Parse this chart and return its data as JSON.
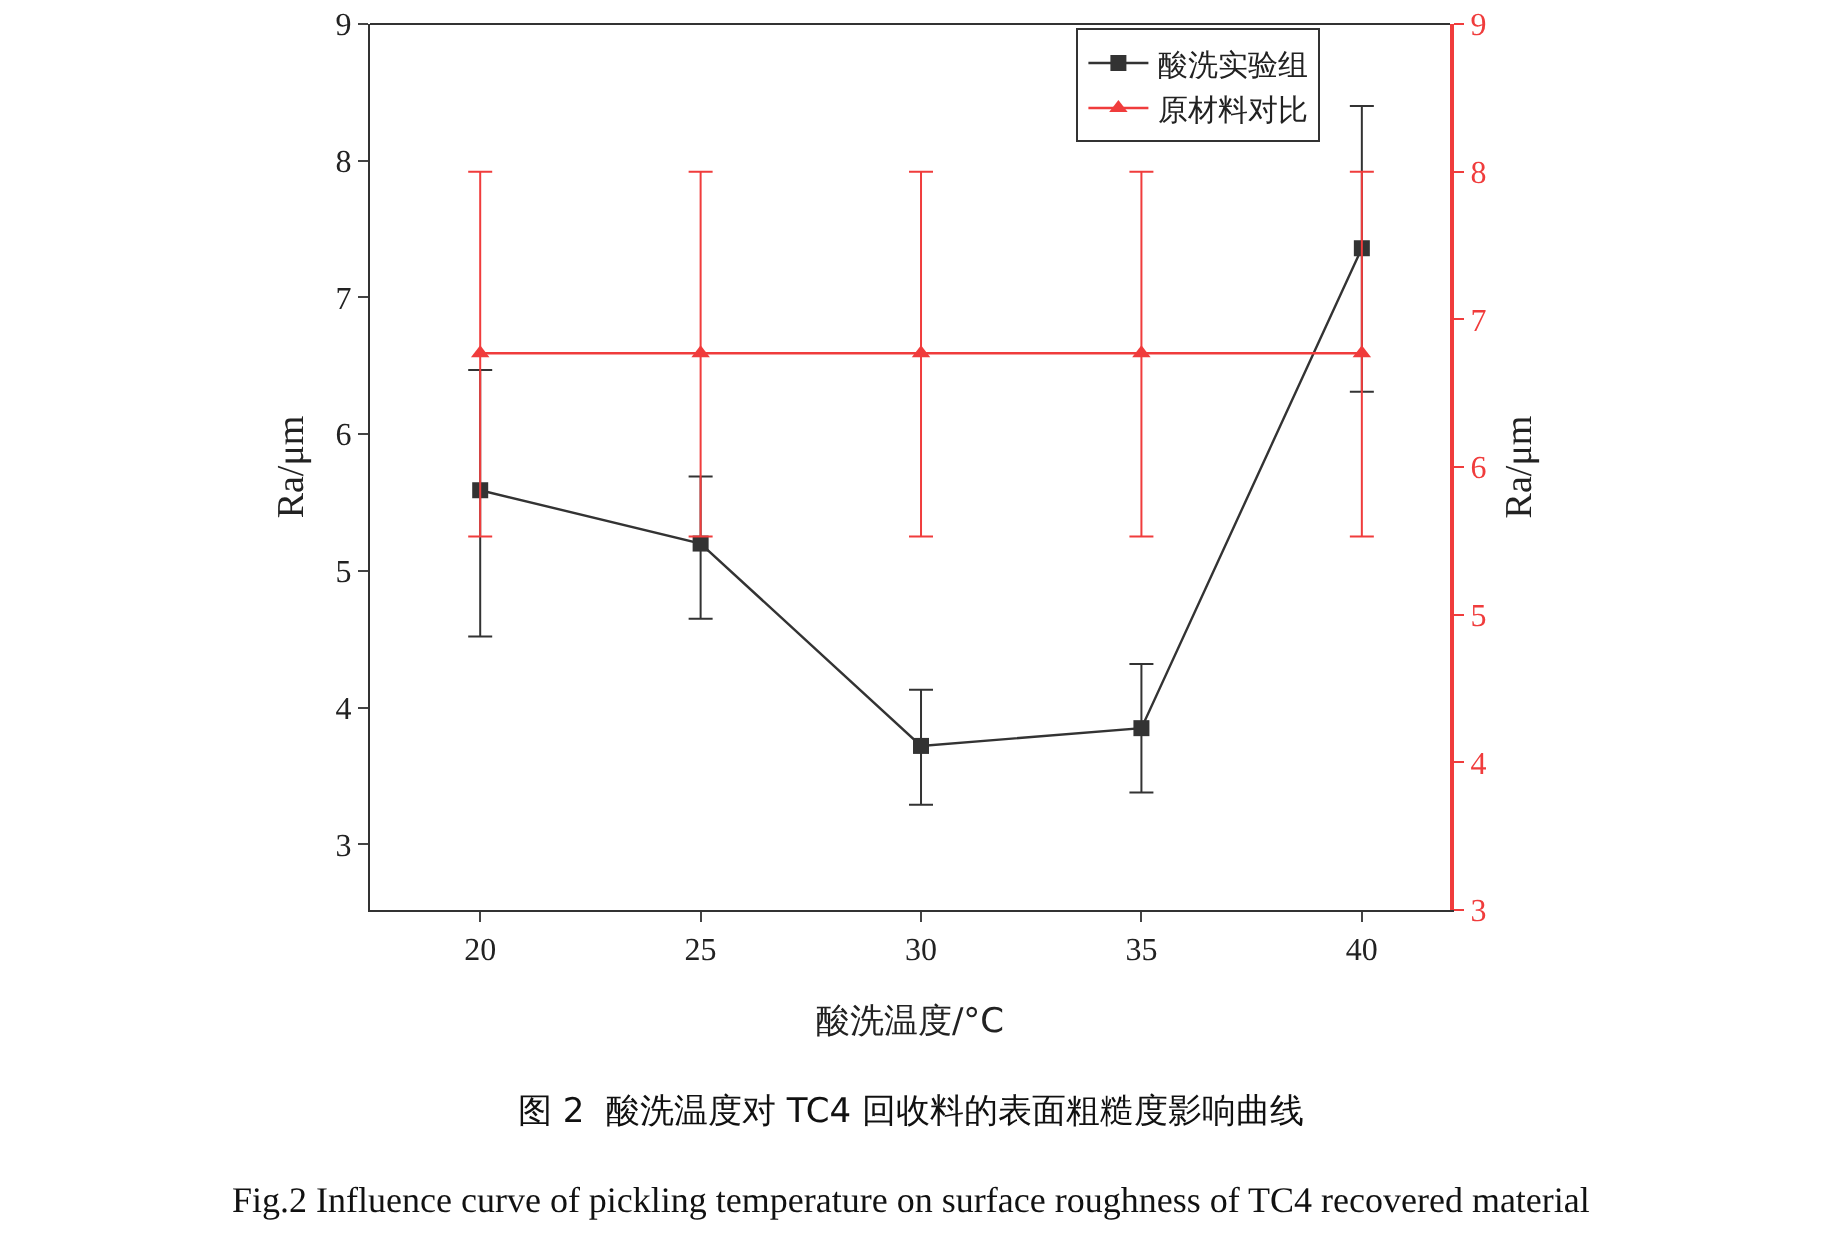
{
  "chart_data": {
    "type": "line",
    "xlabel": "酸洗温度/°C",
    "ylabel": "Ra/μm",
    "y2label": "Ra/μm",
    "x": [
      20,
      25,
      30,
      35,
      40
    ],
    "series": [
      {
        "name": "酸洗实验组",
        "color": "#333333",
        "marker": "square",
        "values": [
          5.59,
          5.2,
          3.72,
          3.85,
          7.36
        ],
        "errors": [
          [
            4.52,
            6.47
          ],
          [
            4.65,
            5.69
          ],
          [
            3.29,
            4.13
          ],
          [
            3.38,
            4.32
          ],
          [
            6.31,
            8.4
          ]
        ]
      },
      {
        "name": "原材料对比",
        "color": "#f03c3c",
        "marker": "triangle",
        "axis": "y2",
        "values": [
          6.77,
          6.77,
          6.77,
          6.77,
          6.77
        ],
        "errors": [
          [
            5.53,
            8.0
          ],
          [
            5.53,
            8.0
          ],
          [
            5.53,
            8.0
          ],
          [
            5.53,
            8.0
          ],
          [
            5.53,
            8.0
          ]
        ]
      }
    ],
    "xlim": [
      17.5,
      42
    ],
    "xticks": [
      20,
      25,
      30,
      35,
      40
    ],
    "ylim": [
      2.52,
      9
    ],
    "yticks": [
      3,
      4,
      5,
      6,
      7,
      8,
      9
    ],
    "y2lim": [
      3,
      9
    ],
    "y2ticks": [
      3,
      4,
      5,
      6,
      7,
      8,
      9
    ],
    "grid": false,
    "legend": "top right",
    "line_style": "solid",
    "annotations": [
      "图 2  酸洗温度对 TC4 回收料的表面粗糙度影响曲线",
      "Fig.2 Influence curve of pickling temperature on surface roughness of TC4 recovered material"
    ]
  }
}
